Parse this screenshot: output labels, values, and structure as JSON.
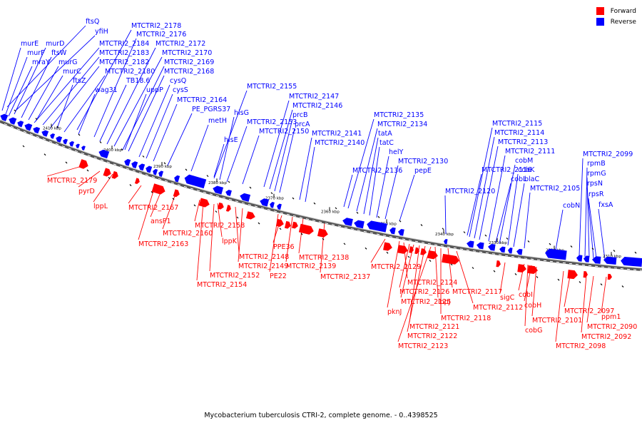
{
  "title": "Mycobacterium tuberculosis CTRI-2, complete genome. - 0..4398525",
  "legend": [
    {
      "label": "Forward",
      "color": "#ff0000"
    },
    {
      "label": "Reverse",
      "color": "#0000ff"
    }
  ],
  "colors": {
    "forward": "#ff0000",
    "reverse": "#0000ff",
    "backbone": "#555555"
  },
  "ticks": [
    "2410 kbp",
    "2400 kbp",
    "2390 kbp",
    "2380 kbp",
    "2370 kbp",
    "2360 kbp",
    "2350 kbp",
    "2340 kbp",
    "2330 kbp",
    "2320 kbp",
    "2310 kbp"
  ],
  "reverse_labels": [
    "ftsQ",
    "MTCTRI2_2178",
    "yfiH",
    "MTCTRI2_2176",
    "murE",
    "murD",
    "MTCTRI2_2184",
    "MTCTRI2_2172",
    "murF",
    "ftsW",
    "MTCTRI2_2183",
    "MTCTRI2_2170",
    "mraY",
    "murG",
    "MTCTRI2_2182",
    "MTCTRI2_2169",
    "murC",
    "MTCTRI2_2180",
    "MTCTRI2_2168",
    "ftsZ",
    "TB18.6",
    "cysQ",
    "wag31",
    "uppP",
    "cysS",
    "MTCTRI2_2164",
    "PE_PGRS37",
    "metH",
    "MTCTRI2_2155",
    "MTCTRI2_2147",
    "MTCTRI2_2146",
    "hisG",
    "prcB",
    "MTCTRI2_2153",
    "prcA",
    "MTCTRI2_2150",
    "MTCTRI2_2141",
    "hisE",
    "MTCTRI2_2140",
    "MTCTRI2_2135",
    "MTCTRI2_2134",
    "tatA",
    "tatC",
    "helY",
    "MTCTRI2_2130",
    "MTCTRI2_2136",
    "pepE",
    "MTCTRI2_2120",
    "MTCTRI2_2115",
    "MTCTRI2_2114",
    "MTCTRI2_2113",
    "MTCTRI2_2111",
    "cobM",
    "MTCTRI2_2116",
    "cobK",
    "cobL",
    "blaC",
    "MTCTRI2_2105",
    "MTCTRI2_2099",
    "rpmB",
    "rpmG",
    "rpsN",
    "rpsR",
    "cobN",
    "fxsA"
  ],
  "forward_labels": [
    "MTCTRI2_2179",
    "pyrD",
    "lppL",
    "MTCTRI2_2167",
    "ansP1",
    "MTCTRI2_2160",
    "MTCTRI2_2163",
    "MTCTRI2_2158",
    "lppK",
    "MTCTRI2_2148",
    "MTCTRI2_2149",
    "MTCTRI2_2152",
    "MTCTRI2_2154",
    "PPE36",
    "MTCTRI2_2138",
    "MTCTRI2_2139",
    "PE22",
    "MTCTRI2_2137",
    "MTCTRI2_2129",
    "MTCTRI2_2124",
    "MTCTRI2_2126",
    "MTCTRI2_2117",
    "MTCTRI2_2125",
    "lppJ",
    "pknJ",
    "MTCTRI2_2112",
    "MTCTRI2_2118",
    "MTCTRI2_2121",
    "MTCTRI2_2122",
    "MTCTRI2_2123",
    "sigC",
    "cobI",
    "cobH",
    "MTCTRI2_2097",
    "MTCTRI2_2101",
    "cobG",
    "MTCTRI2_2092",
    "MTCTRI2_2098",
    "ppm1",
    "MTCTRI2_2090"
  ]
}
